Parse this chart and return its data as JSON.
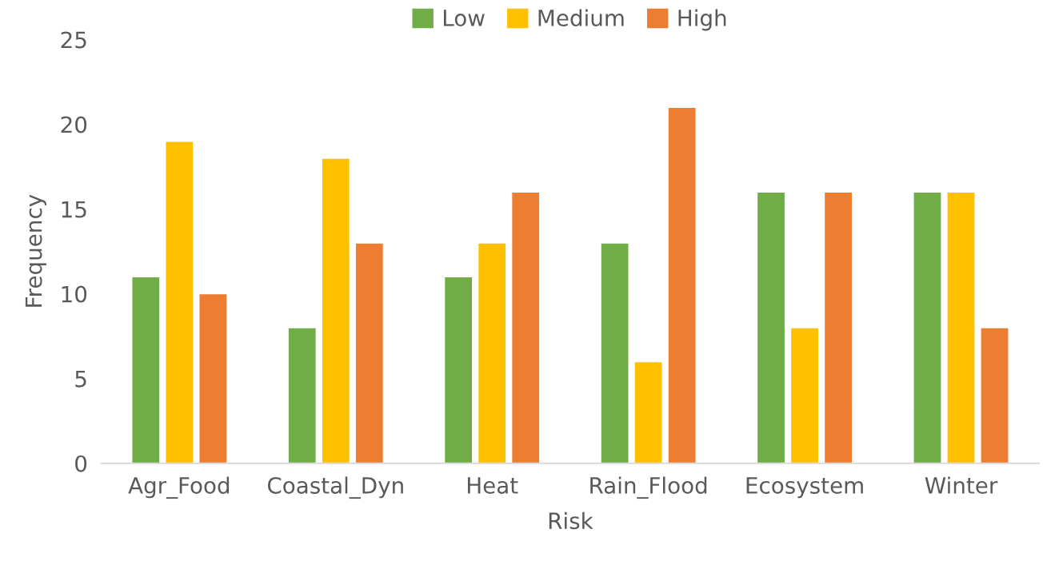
{
  "chart_data": {
    "type": "bar",
    "xlabel": "Risk",
    "ylabel": "Frequency",
    "categories": [
      "Agr_Food",
      "Coastal_Dyn",
      "Heat",
      "Rain_Flood",
      "Ecosystem",
      "Winter"
    ],
    "series": [
      {
        "name": "Low",
        "color": "#70ad47",
        "values": [
          11,
          8,
          11,
          13,
          16,
          16
        ]
      },
      {
        "name": "Medium",
        "color": "#ffc000",
        "values": [
          19,
          18,
          13,
          6,
          8,
          16
        ]
      },
      {
        "name": "High",
        "color": "#ed7d31",
        "values": [
          10,
          13,
          16,
          21,
          16,
          8
        ]
      }
    ],
    "ylim": [
      0,
      25
    ],
    "yticks": [
      0,
      5,
      10,
      15,
      20,
      25
    ],
    "grid": false,
    "legend": "top"
  }
}
